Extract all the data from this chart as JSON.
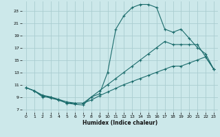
{
  "xlabel": "Humidex (Indice chaleur)",
  "bg_color": "#cce8ea",
  "grid_color": "#aacdd0",
  "line_color": "#1a6b6b",
  "xlim": [
    -0.5,
    23.5
  ],
  "ylim": [
    6.5,
    24.5
  ],
  "xticks": [
    0,
    1,
    2,
    3,
    4,
    5,
    6,
    7,
    8,
    9,
    10,
    11,
    12,
    13,
    14,
    15,
    16,
    17,
    18,
    19,
    20,
    21,
    22,
    23
  ],
  "yticks": [
    7,
    9,
    11,
    13,
    15,
    17,
    19,
    21,
    23
  ],
  "line_top_x": [
    0,
    1,
    2,
    3,
    4,
    5,
    6,
    7,
    8,
    9,
    10,
    11,
    12,
    13,
    14,
    15,
    16,
    17,
    18,
    19,
    20,
    21,
    22,
    23
  ],
  "line_top_y": [
    10.5,
    10.0,
    9.0,
    9.0,
    8.5,
    8.0,
    7.8,
    7.7,
    9.0,
    9.5,
    13.0,
    20.0,
    22.2,
    23.5,
    24.0,
    24.0,
    23.5,
    20.0,
    19.5,
    20.0,
    18.5,
    17.0,
    16.0,
    13.5
  ],
  "line_mid_x": [
    0,
    1,
    2,
    3,
    4,
    5,
    6,
    7,
    8,
    9,
    10,
    11,
    12,
    13,
    14,
    15,
    16,
    17,
    18,
    19,
    20,
    21,
    22,
    23
  ],
  "line_mid_y": [
    10.5,
    10.0,
    9.2,
    8.8,
    8.5,
    8.0,
    8.0,
    8.0,
    9.0,
    10.0,
    11.0,
    12.0,
    13.0,
    14.0,
    15.0,
    16.0,
    17.0,
    18.0,
    17.5,
    17.5,
    17.5,
    17.5,
    15.5,
    13.5
  ],
  "line_bot_x": [
    0,
    1,
    2,
    3,
    4,
    5,
    6,
    7,
    8,
    9,
    10,
    11,
    12,
    13,
    14,
    15,
    16,
    17,
    18,
    19,
    20,
    21,
    22,
    23
  ],
  "line_bot_y": [
    10.5,
    10.0,
    9.3,
    9.0,
    8.6,
    8.2,
    8.0,
    8.0,
    8.5,
    9.2,
    9.8,
    10.4,
    11.0,
    11.5,
    12.0,
    12.5,
    13.0,
    13.5,
    14.0,
    14.0,
    14.5,
    15.0,
    15.5,
    13.5
  ]
}
